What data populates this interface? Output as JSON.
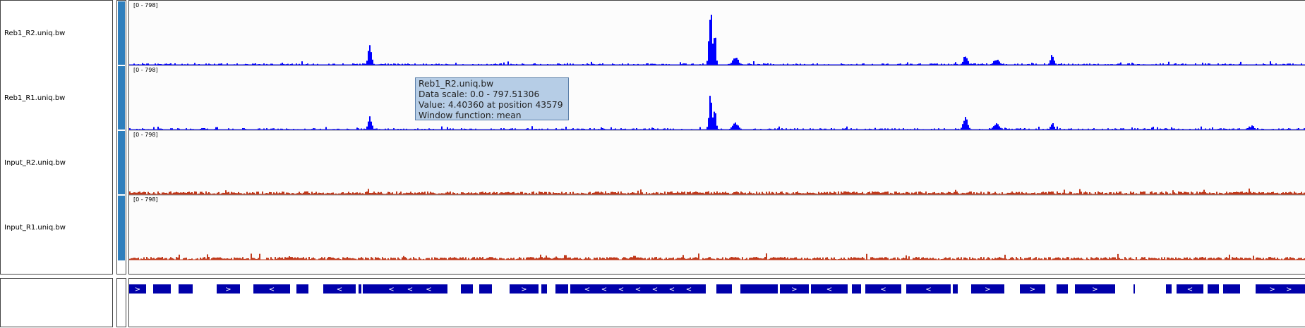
{
  "tracks": [
    {
      "name": "Reb1_R2.uniq.bw",
      "scale": "[0 - 798]",
      "color": "#0000ff"
    },
    {
      "name": "Reb1_R1.uniq.bw",
      "scale": "[0 - 798]",
      "color": "#0000ff"
    },
    {
      "name": "Input_R2.uniq.bw",
      "scale": "[0 - 798]",
      "color": "#c0391b"
    },
    {
      "name": "Input_R1.uniq.bw",
      "scale": "[0 - 798]",
      "color": "#c0391b"
    }
  ],
  "attribute_color": "#2f7fbd",
  "gene_color": "#0000aa",
  "tooltip": {
    "line1": "Reb1_R2.uniq.bw",
    "line2": "Data scale: 0.0 - 797.51306",
    "line3": "Value: 4.40360 at position 43579",
    "line4": "Window function: mean"
  }
}
